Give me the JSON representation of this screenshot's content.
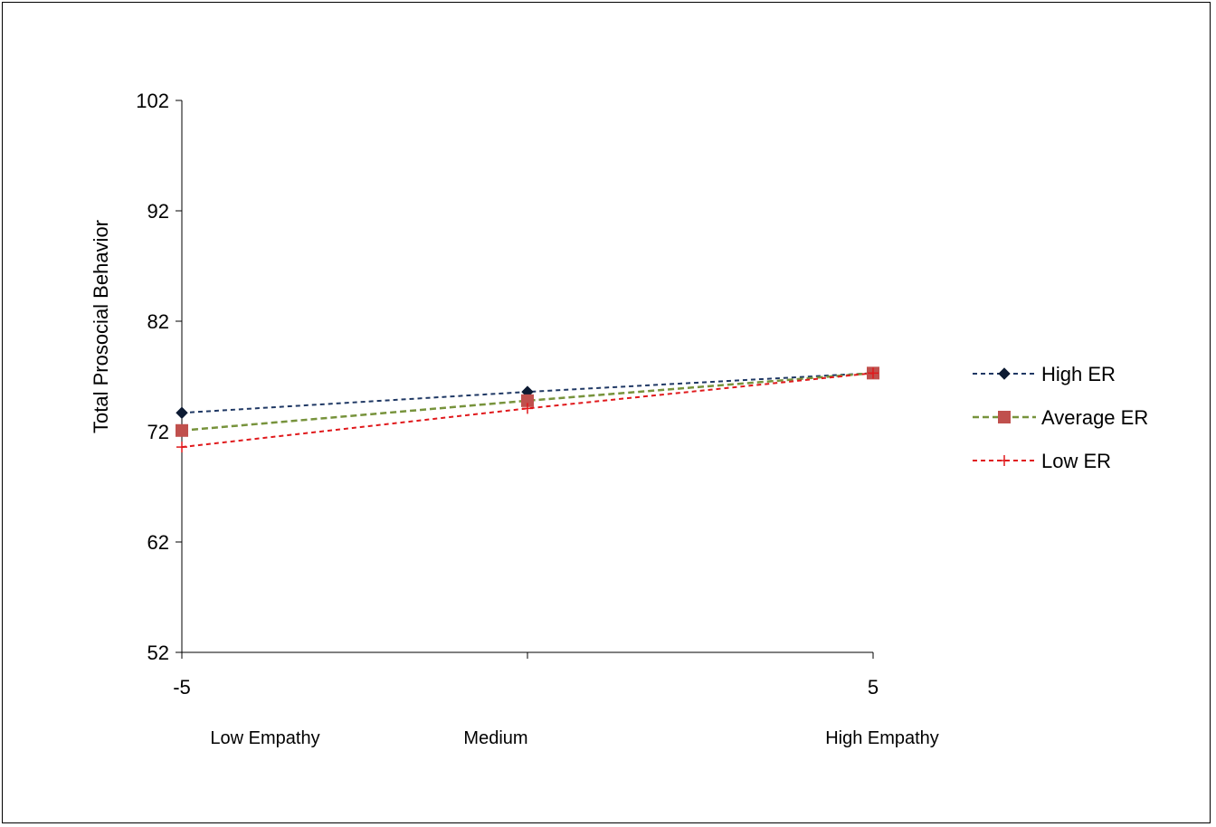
{
  "chart_data": {
    "type": "line",
    "title": "",
    "ylabel": "Total Prosocial Behavior",
    "xlabel": "",
    "x_ticks": [
      "-5",
      "",
      "5"
    ],
    "x_categories": [
      "Low Empathy",
      "Medium",
      "High Empathy"
    ],
    "x": [
      -5,
      0,
      5
    ],
    "ylim": [
      52,
      102
    ],
    "y_ticks": [
      52,
      62,
      72,
      82,
      92,
      102
    ],
    "grid": false,
    "legend_position": "right",
    "series": [
      {
        "name": "High ER",
        "values": [
          73.7,
          75.6,
          77.3
        ],
        "color": "#1f3864",
        "marker": "diamond"
      },
      {
        "name": "Average ER",
        "values": [
          72.1,
          74.8,
          77.3
        ],
        "color": "#77933c",
        "marker": "square"
      },
      {
        "name": "Low ER",
        "values": [
          70.6,
          74.1,
          77.3
        ],
        "color": "#e0191c",
        "marker": "plus"
      }
    ],
    "marker_colors": {
      "Average ER": "#c0504d",
      "Low ER": "#e0191c",
      "High ER": "#0d1b33"
    }
  }
}
